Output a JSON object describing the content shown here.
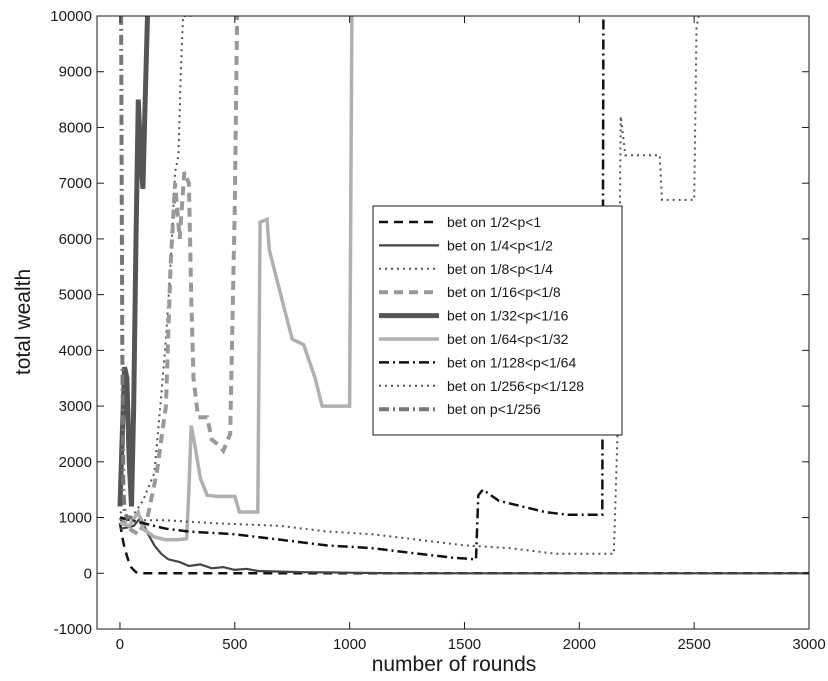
{
  "chart_data": {
    "type": "line",
    "title": "",
    "xlabel": "number of rounds",
    "ylabel": "total wealth",
    "xlim": [
      -100,
      3000
    ],
    "ylim": [
      -1000,
      10000
    ],
    "xticks": [
      0,
      500,
      1000,
      1500,
      2000,
      2500,
      3000
    ],
    "yticks": [
      -1000,
      0,
      1000,
      2000,
      3000,
      4000,
      5000,
      6000,
      7000,
      8000,
      9000,
      10000
    ],
    "grid": false,
    "legend_position": "center-right",
    "series": [
      {
        "name": "bet on 1/2<p<1",
        "color": "#111111",
        "dash": "dashed",
        "points": [
          [
            0,
            900
          ],
          [
            10,
            650
          ],
          [
            20,
            450
          ],
          [
            35,
            250
          ],
          [
            50,
            100
          ],
          [
            70,
            20
          ],
          [
            100,
            0
          ],
          [
            200,
            0
          ],
          [
            400,
            0
          ],
          [
            700,
            0
          ],
          [
            1000,
            0
          ],
          [
            1500,
            0
          ],
          [
            2000,
            0
          ],
          [
            3000,
            0
          ]
        ]
      },
      {
        "name": "bet on 1/4<p<1/2",
        "color": "#444444",
        "dash": "solid",
        "points": [
          [
            0,
            800
          ],
          [
            30,
            820
          ],
          [
            60,
            850
          ],
          [
            90,
            1000
          ],
          [
            120,
            720
          ],
          [
            150,
            500
          ],
          [
            180,
            350
          ],
          [
            210,
            250
          ],
          [
            260,
            200
          ],
          [
            300,
            130
          ],
          [
            350,
            160
          ],
          [
            400,
            90
          ],
          [
            450,
            110
          ],
          [
            500,
            60
          ],
          [
            550,
            80
          ],
          [
            600,
            40
          ],
          [
            700,
            30
          ],
          [
            800,
            20
          ],
          [
            900,
            15
          ],
          [
            1000,
            10
          ],
          [
            1100,
            5
          ],
          [
            1200,
            0
          ],
          [
            1400,
            0
          ],
          [
            3000,
            0
          ]
        ]
      },
      {
        "name": "bet on 1/8<p<1/4",
        "color": "#555555",
        "dash": "dotted",
        "points": [
          [
            0,
            1100
          ],
          [
            50,
            1000
          ],
          [
            100,
            1300
          ],
          [
            150,
            1800
          ],
          [
            180,
            3200
          ],
          [
            200,
            4200
          ],
          [
            220,
            5500
          ],
          [
            240,
            7200
          ],
          [
            255,
            7500
          ],
          [
            265,
            9000
          ],
          [
            275,
            10000
          ],
          [
            300,
            10000
          ],
          [
            310,
            10000
          ]
        ]
      },
      {
        "name": "bet on 1/16<p<1/8",
        "color": "#999999",
        "dash": "dashed",
        "points": [
          [
            0,
            1000
          ],
          [
            40,
            800
          ],
          [
            80,
            700
          ],
          [
            120,
            1000
          ],
          [
            160,
            1800
          ],
          [
            200,
            3000
          ],
          [
            220,
            5500
          ],
          [
            240,
            7000
          ],
          [
            260,
            6000
          ],
          [
            280,
            7200
          ],
          [
            300,
            7000
          ],
          [
            310,
            5000
          ],
          [
            320,
            3500
          ],
          [
            340,
            2800
          ],
          [
            380,
            2800
          ],
          [
            400,
            2400
          ],
          [
            430,
            2300
          ],
          [
            450,
            2200
          ],
          [
            480,
            2500
          ],
          [
            500,
            6600
          ],
          [
            510,
            10000
          ]
        ]
      },
      {
        "name": "bet on 1/32<p<1/16",
        "color": "#555555",
        "dash": "solid",
        "points": [
          [
            0,
            1200
          ],
          [
            10,
            2500
          ],
          [
            20,
            3700
          ],
          [
            30,
            3500
          ],
          [
            40,
            2000
          ],
          [
            50,
            1200
          ],
          [
            60,
            3000
          ],
          [
            70,
            6000
          ],
          [
            80,
            8500
          ],
          [
            90,
            7500
          ],
          [
            100,
            6900
          ],
          [
            110,
            8500
          ],
          [
            120,
            10000
          ],
          [
            130,
            10000
          ]
        ]
      },
      {
        "name": "bet on 1/64<p<1/32",
        "color": "#b0b0b0",
        "dash": "solid",
        "points": [
          [
            0,
            900
          ],
          [
            40,
            850
          ],
          [
            80,
            1100
          ],
          [
            100,
            800
          ],
          [
            150,
            650
          ],
          [
            200,
            600
          ],
          [
            250,
            600
          ],
          [
            290,
            620
          ],
          [
            300,
            1500
          ],
          [
            310,
            2650
          ],
          [
            330,
            2200
          ],
          [
            350,
            1700
          ],
          [
            380,
            1400
          ],
          [
            420,
            1380
          ],
          [
            500,
            1380
          ],
          [
            520,
            1100
          ],
          [
            600,
            1100
          ],
          [
            610,
            6300
          ],
          [
            640,
            6350
          ],
          [
            650,
            5800
          ],
          [
            700,
            5000
          ],
          [
            750,
            4200
          ],
          [
            800,
            4100
          ],
          [
            850,
            3500
          ],
          [
            880,
            3000
          ],
          [
            1000,
            3000
          ],
          [
            1010,
            10000
          ]
        ]
      },
      {
        "name": "bet on 1/128<p<1/64",
        "color": "#111111",
        "dash": "dashdot",
        "points": [
          [
            0,
            1000
          ],
          [
            100,
            900
          ],
          [
            200,
            800
          ],
          [
            300,
            750
          ],
          [
            500,
            700
          ],
          [
            700,
            600
          ],
          [
            900,
            500
          ],
          [
            1100,
            450
          ],
          [
            1300,
            350
          ],
          [
            1450,
            280
          ],
          [
            1550,
            250
          ],
          [
            1560,
            1400
          ],
          [
            1580,
            1500
          ],
          [
            1650,
            1300
          ],
          [
            1750,
            1200
          ],
          [
            1850,
            1100
          ],
          [
            1950,
            1050
          ],
          [
            2100,
            1050
          ],
          [
            2105,
            10000
          ]
        ]
      },
      {
        "name": "bet on 1/256<p<1/128",
        "color": "#555555",
        "dash": "dotted",
        "points": [
          [
            0,
            950
          ],
          [
            200,
            950
          ],
          [
            400,
            900
          ],
          [
            700,
            850
          ],
          [
            900,
            750
          ],
          [
            1100,
            700
          ],
          [
            1300,
            600
          ],
          [
            1500,
            500
          ],
          [
            1700,
            450
          ],
          [
            1900,
            350
          ],
          [
            2100,
            350
          ],
          [
            2150,
            350
          ],
          [
            2170,
            3000
          ],
          [
            2180,
            8200
          ],
          [
            2200,
            7500
          ],
          [
            2350,
            7500
          ],
          [
            2360,
            6700
          ],
          [
            2500,
            6700
          ],
          [
            2510,
            9800
          ],
          [
            2520,
            10000
          ]
        ]
      },
      {
        "name": "bet on p<1/256",
        "color": "#777777",
        "dash": "dashdot",
        "points": [
          [
            0,
            10000
          ],
          [
            5,
            10000
          ],
          [
            10,
            4000
          ],
          [
            15,
            1500
          ],
          [
            20,
            1100
          ],
          [
            30,
            1000
          ],
          [
            50,
            1000
          ]
        ]
      }
    ]
  }
}
